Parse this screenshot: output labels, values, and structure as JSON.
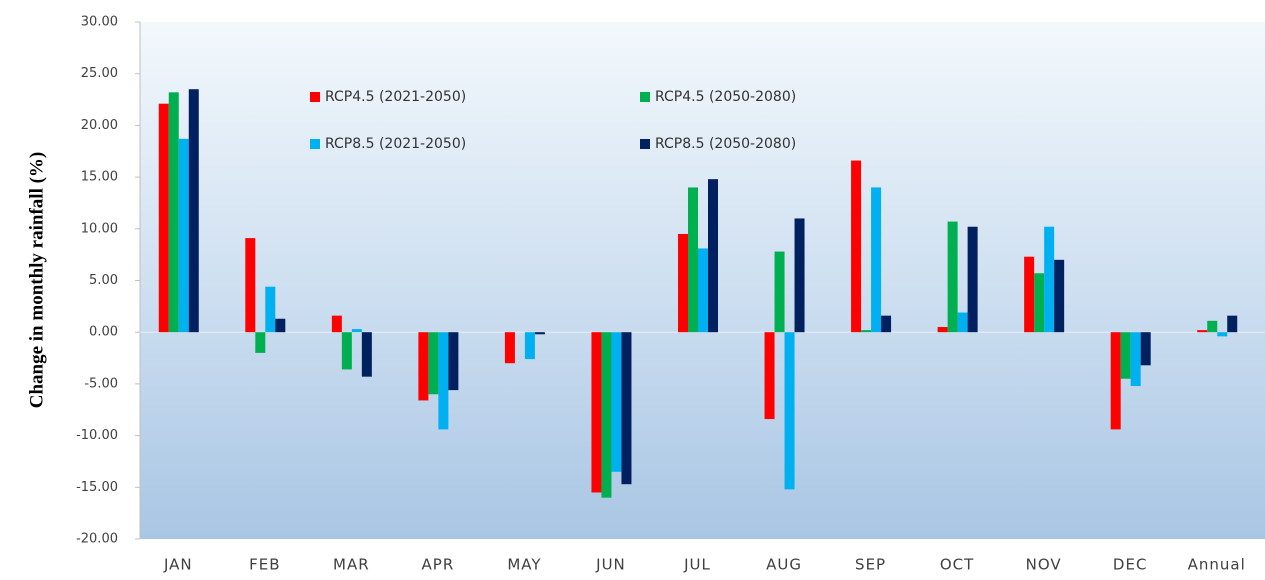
{
  "chart_data": {
    "type": "bar",
    "y_label": "Change in monthly rainfall (%)",
    "categories": [
      "JAN",
      "FEB",
      "MAR",
      "APR",
      "MAY",
      "JUN",
      "JUL",
      "AUG",
      "SEP",
      "OCT",
      "NOV",
      "DEC",
      "Annual"
    ],
    "series": [
      {
        "name": "RCP4.5 (2021-2050)",
        "color": "#ff0000",
        "values": [
          22.1,
          9.1,
          1.6,
          -6.6,
          -3.0,
          -15.5,
          9.5,
          -8.4,
          16.6,
          0.5,
          7.3,
          -9.4,
          0.2
        ]
      },
      {
        "name": "RCP4.5 (2050-2080)",
        "color": "#00b050",
        "values": [
          23.2,
          -2.0,
          -3.6,
          -6.0,
          0,
          -16.0,
          14.0,
          7.8,
          0.2,
          10.7,
          5.7,
          -4.5,
          1.1
        ]
      },
      {
        "name": "RCP8.5 (2021-2050)",
        "color": "#00b0f0",
        "values": [
          18.7,
          4.4,
          0.3,
          -9.4,
          -2.6,
          -13.5,
          8.1,
          -15.2,
          14.0,
          1.9,
          10.2,
          -5.2,
          -0.4
        ]
      },
      {
        "name": "RCP8.5 (2050-2080)",
        "color": "#002060",
        "values": [
          23.5,
          1.3,
          -4.3,
          -5.6,
          -0.2,
          -14.7,
          14.8,
          11.0,
          1.6,
          10.2,
          7.0,
          -3.2,
          1.6
        ]
      }
    ],
    "ylim": [
      -20,
      30
    ],
    "yticks": [
      {
        "value": -20,
        "label": "-20.00"
      },
      {
        "value": -15,
        "label": "-15.00"
      },
      {
        "value": -10,
        "label": "-10.00"
      },
      {
        "value": -5,
        "label": "-5.00"
      },
      {
        "value": 0,
        "label": "0.00"
      },
      {
        "value": 5,
        "label": "5.00"
      },
      {
        "value": 10,
        "label": "10.00"
      },
      {
        "value": 15,
        "label": "15.00"
      },
      {
        "value": 20,
        "label": "20.00"
      },
      {
        "value": 25,
        "label": "25.00"
      },
      {
        "value": 30,
        "label": "30.00"
      }
    ],
    "grid": false,
    "legend_position": "upper center"
  }
}
